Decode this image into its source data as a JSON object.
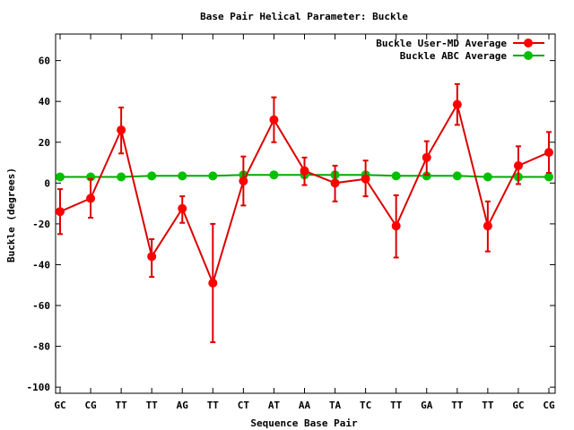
{
  "chart_data": {
    "type": "line",
    "title": "Base Pair Helical Parameter: Buckle",
    "xlabel": "Sequence Base Pair",
    "ylabel": "Buckle (degrees)",
    "categories": [
      "GC",
      "CG",
      "TT",
      "TT",
      "AG",
      "TT",
      "CT",
      "AT",
      "AA",
      "TA",
      "TC",
      "TT",
      "GA",
      "TT",
      "TT",
      "GC",
      "CG"
    ],
    "ylim": [
      -103,
      73
    ],
    "yticks": [
      -100,
      -80,
      -60,
      -40,
      -20,
      0,
      20,
      40,
      60
    ],
    "grid": false,
    "legend_position": "top-right",
    "series": [
      {
        "name": "Buckle User-MD Average",
        "color": "#ff0000",
        "line_color": "#dd0000",
        "values": [
          -14,
          -7.5,
          26,
          -36,
          -12.5,
          -49,
          1,
          31,
          6,
          0,
          2,
          -21,
          12.5,
          38.5,
          -21,
          8.5,
          15
        ],
        "err_low": [
          -25,
          -17,
          14.5,
          -46,
          -19.5,
          -78,
          -11,
          20,
          -1,
          -9,
          -6.5,
          -36.5,
          4,
          28.5,
          -33.5,
          -0.5,
          5
        ],
        "err_high": [
          -3,
          2,
          37,
          -27.5,
          -6.5,
          -20,
          13,
          42,
          12.5,
          8.5,
          11,
          -6,
          20.5,
          48.5,
          -9,
          18,
          25
        ]
      },
      {
        "name": "Buckle ABC Average",
        "color": "#00c000",
        "line_color": "#00aa00",
        "values": [
          3,
          3,
          3,
          3.5,
          3.5,
          3.5,
          4,
          4,
          4,
          4,
          4,
          3.5,
          3.5,
          3.5,
          3,
          3,
          3
        ]
      }
    ]
  }
}
